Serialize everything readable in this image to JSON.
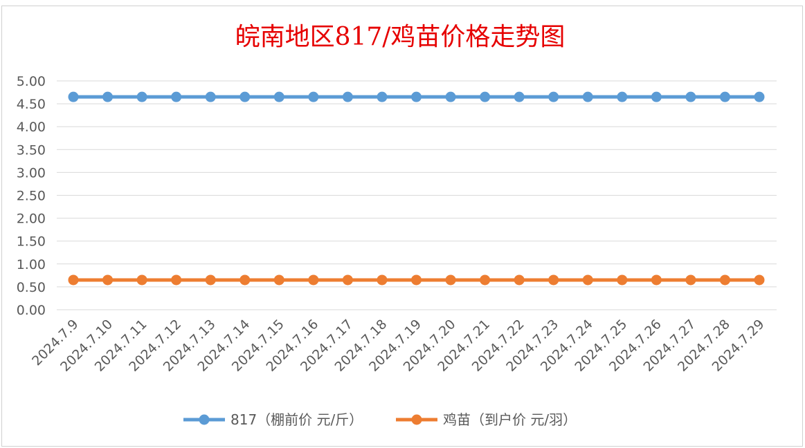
{
  "chart_data": {
    "type": "line",
    "title": "皖南地区817/鸡苗价格走势图",
    "categories": [
      "2024.7.9",
      "2024.7.10",
      "2024.7.11",
      "2024.7.12",
      "2024.7.13",
      "2024.7.14",
      "2024.7.15",
      "2024.7.16",
      "2024.7.17",
      "2024.7.18",
      "2024.7.19",
      "2024.7.20",
      "2024.7.21",
      "2024.7.22",
      "2024.7.23",
      "2024.7.24",
      "2024.7.25",
      "2024.7.26",
      "2024.7.27",
      "2024.7.28",
      "2024.7.29"
    ],
    "y_ticks": [
      "0.00",
      "0.50",
      "1.00",
      "1.50",
      "2.00",
      "2.50",
      "3.00",
      "3.50",
      "4.00",
      "4.50",
      "5.00"
    ],
    "ylim": [
      0,
      5
    ],
    "grid": true,
    "legend_position": "bottom",
    "series": [
      {
        "name": "817（棚前价 元/斤）",
        "color": "#5b9bd5",
        "values": [
          4.65,
          4.65,
          4.65,
          4.65,
          4.65,
          4.65,
          4.65,
          4.65,
          4.65,
          4.65,
          4.65,
          4.65,
          4.65,
          4.65,
          4.65,
          4.65,
          4.65,
          4.65,
          4.65,
          4.65,
          4.65
        ]
      },
      {
        "name": "鸡苗（到户价 元/羽）",
        "color": "#ed7d31",
        "values": [
          0.65,
          0.65,
          0.65,
          0.65,
          0.65,
          0.65,
          0.65,
          0.65,
          0.65,
          0.65,
          0.65,
          0.65,
          0.65,
          0.65,
          0.65,
          0.65,
          0.65,
          0.65,
          0.65,
          0.65,
          0.65
        ]
      }
    ]
  }
}
